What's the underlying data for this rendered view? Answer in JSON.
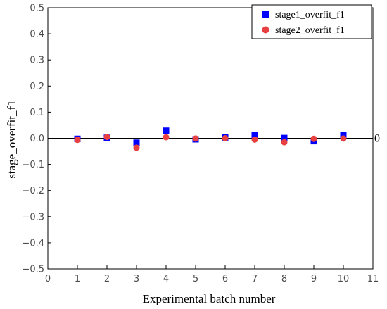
{
  "chart_data": {
    "type": "scatter",
    "xlabel": "Experimental batch number",
    "ylabel": "stage_overfit_f1",
    "xlim": [
      0,
      11
    ],
    "ylim": [
      -0.5,
      0.5
    ],
    "x_ticks": [
      "0",
      "1",
      "2",
      "3",
      "4",
      "5",
      "6",
      "7",
      "8",
      "9",
      "10",
      "11"
    ],
    "y_ticks": [
      "0.5",
      "0.4",
      "0.3",
      "0.2",
      "0.1",
      "0.0",
      "−0.1",
      "−0.2",
      "−0.3",
      "−0.4",
      "−0.5"
    ],
    "reference_line": {
      "y": 0,
      "label": "0"
    },
    "legend_position": "top-right",
    "series": [
      {
        "name": "stage1_overfit_f1",
        "marker": "square",
        "color": "#0000ff",
        "x": [
          1,
          2,
          3,
          4,
          5,
          6,
          7,
          8,
          9,
          10
        ],
        "y": [
          -0.002,
          0.002,
          -0.017,
          0.029,
          -0.004,
          0.003,
          0.012,
          0.001,
          -0.011,
          0.012
        ]
      },
      {
        "name": "stage2_overfit_f1",
        "marker": "circle",
        "color": "#e84040",
        "x": [
          1,
          2,
          3,
          4,
          5,
          6,
          7,
          8,
          9,
          10
        ],
        "y": [
          -0.006,
          0.005,
          -0.036,
          0.004,
          -0.001,
          0.0,
          -0.005,
          -0.015,
          -0.002,
          -0.001
        ]
      }
    ]
  }
}
